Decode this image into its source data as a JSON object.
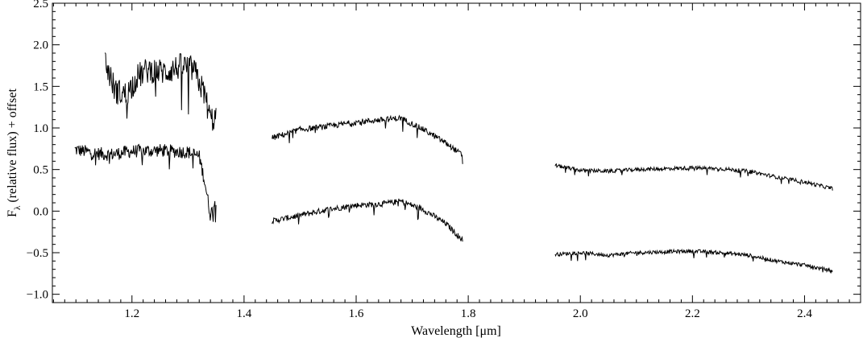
{
  "chart_data": {
    "type": "line",
    "title": "",
    "xlabel": "Wavelength [μm]",
    "ylabel_main": "F",
    "ylabel_sub": "λ",
    "ylabel_rest": " (relative flux) + offset",
    "xlim": [
      1.058,
      2.5
    ],
    "ylim": [
      -1.1,
      2.5
    ],
    "grid": false,
    "legend": "none",
    "line_color": "#000000",
    "x_ticks": [
      {
        "value": 1.2,
        "label": "1.2"
      },
      {
        "value": 1.4,
        "label": "1.4"
      },
      {
        "value": 1.6,
        "label": "1.6"
      },
      {
        "value": 1.8,
        "label": "1.8"
      },
      {
        "value": 2.0,
        "label": "2.0"
      },
      {
        "value": 2.2,
        "label": "2.2"
      },
      {
        "value": 2.4,
        "label": "2.4"
      }
    ],
    "y_ticks": [
      {
        "value": 2.5,
        "label": "2.5"
      },
      {
        "value": 2.0,
        "label": "2.0"
      },
      {
        "value": 1.5,
        "label": "1.5"
      },
      {
        "value": 1.0,
        "label": "1.0"
      },
      {
        "value": 0.5,
        "label": "0.5"
      },
      {
        "value": 0.0,
        "label": "0.0"
      },
      {
        "value": -0.5,
        "label": "−0.5"
      },
      {
        "value": -1.0,
        "label": "−1.0"
      }
    ],
    "series": [
      {
        "segments": [
          {
            "noise": 0.16,
            "points": [
              [
                1.098,
                0.74
              ],
              [
                1.13,
                0.7
              ],
              [
                1.16,
                0.68
              ],
              [
                1.2,
                0.72
              ],
              [
                1.25,
                0.73
              ],
              [
                1.3,
                0.71
              ],
              [
                1.32,
                0.66
              ],
              [
                1.33,
                0.35
              ],
              [
                1.34,
                -0.05
              ],
              [
                1.35,
                0.15
              ]
            ]
          },
          {
            "noise": 0.07,
            "points": [
              [
                1.45,
                -0.12
              ],
              [
                1.5,
                -0.05
              ],
              [
                1.55,
                0.02
              ],
              [
                1.6,
                0.07
              ],
              [
                1.65,
                0.09
              ],
              [
                1.68,
                0.12
              ],
              [
                1.72,
                0.02
              ],
              [
                1.76,
                -0.15
              ],
              [
                1.79,
                -0.35
              ]
            ]
          },
          {
            "noise": 0.045,
            "points": [
              [
                1.955,
                -0.52
              ],
              [
                2.0,
                -0.5
              ],
              [
                2.05,
                -0.53
              ],
              [
                2.1,
                -0.5
              ],
              [
                2.15,
                -0.49
              ],
              [
                2.2,
                -0.48
              ],
              [
                2.25,
                -0.5
              ],
              [
                2.3,
                -0.53
              ],
              [
                2.35,
                -0.6
              ],
              [
                2.4,
                -0.65
              ],
              [
                2.45,
                -0.72
              ]
            ]
          }
        ]
      },
      {
        "segments": [
          {
            "noise": 0.32,
            "points": [
              [
                1.152,
                1.8
              ],
              [
                1.17,
                1.45
              ],
              [
                1.19,
                1.4
              ],
              [
                1.21,
                1.62
              ],
              [
                1.23,
                1.7
              ],
              [
                1.26,
                1.67
              ],
              [
                1.29,
                1.75
              ],
              [
                1.31,
                1.7
              ],
              [
                1.33,
                1.4
              ],
              [
                1.34,
                1.1
              ],
              [
                1.35,
                1.12
              ]
            ]
          },
          {
            "noise": 0.07,
            "points": [
              [
                1.45,
                0.88
              ],
              [
                1.5,
                0.98
              ],
              [
                1.55,
                1.02
              ],
              [
                1.6,
                1.07
              ],
              [
                1.65,
                1.1
              ],
              [
                1.68,
                1.12
              ],
              [
                1.72,
                0.98
              ],
              [
                1.76,
                0.82
              ],
              [
                1.79,
                0.67
              ]
            ]
          },
          {
            "noise": 0.045,
            "points": [
              [
                1.955,
                0.55
              ],
              [
                2.0,
                0.49
              ],
              [
                2.05,
                0.48
              ],
              [
                2.1,
                0.5
              ],
              [
                2.15,
                0.51
              ],
              [
                2.2,
                0.52
              ],
              [
                2.25,
                0.51
              ],
              [
                2.3,
                0.48
              ],
              [
                2.35,
                0.41
              ],
              [
                2.4,
                0.35
              ],
              [
                2.45,
                0.27
              ]
            ]
          }
        ]
      }
    ]
  }
}
